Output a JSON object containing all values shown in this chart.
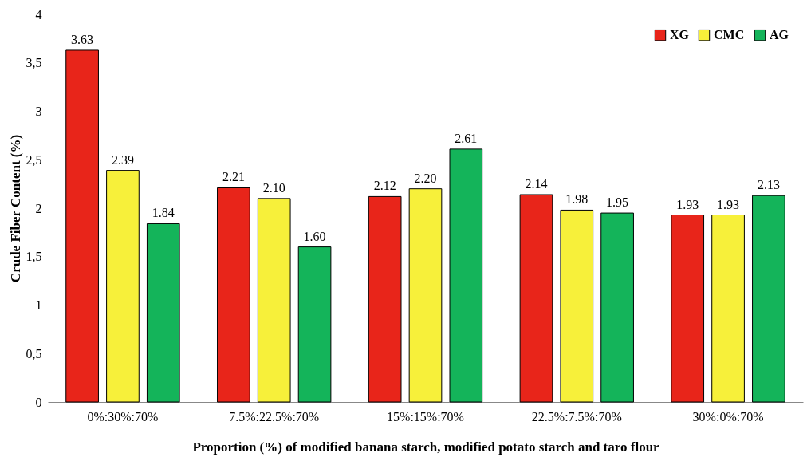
{
  "chart_data": {
    "type": "bar",
    "xlabel": "Proportion (%) of modified banana starch, modified potato starch and taro flour",
    "ylabel": "Crude Fiber Content (%)",
    "categories": [
      "0%:30%:70%",
      "7.5%:22.5%:70%",
      "15%:15%:70%",
      "22.5%:7.5%:70%",
      "30%:0%:70%"
    ],
    "series": [
      {
        "name": "XG",
        "color": "#e8251a",
        "values": [
          3.63,
          2.21,
          2.12,
          2.14,
          1.93
        ],
        "value_labels": [
          "3.63",
          "2.21",
          "2.12",
          "2.14",
          "1.93"
        ]
      },
      {
        "name": "CMC",
        "color": "#f7f03a",
        "values": [
          2.39,
          2.1,
          2.2,
          1.98,
          1.93
        ],
        "value_labels": [
          "2.39",
          "2.10",
          "2.20",
          "1.98",
          "1.93"
        ]
      },
      {
        "name": "AG",
        "color": "#14b45a",
        "values": [
          1.84,
          1.6,
          2.61,
          1.95,
          2.13
        ],
        "value_labels": [
          "1.84",
          "1.60",
          "2.61",
          "1.95",
          "2.13"
        ]
      }
    ],
    "ylim": [
      0,
      4
    ],
    "yticks": [
      0,
      {
        "value": 0.5,
        "label": "0,5"
      },
      1,
      {
        "value": 1.5,
        "label": "1,5"
      },
      2,
      {
        "value": 2.5,
        "label": "2,5"
      },
      3,
      {
        "value": 3.5,
        "label": "3,5"
      },
      4
    ],
    "grid": false,
    "legend": "top right"
  }
}
